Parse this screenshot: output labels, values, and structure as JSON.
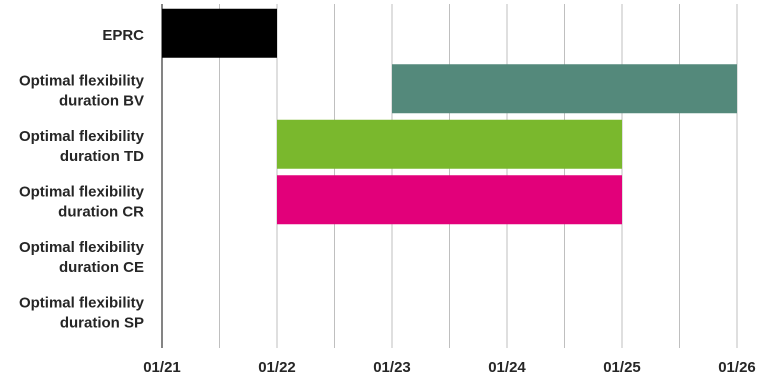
{
  "chart_data": {
    "type": "bar",
    "orientation": "horizontal-gantt",
    "title": "",
    "xlabel": "",
    "ylabel": "",
    "x_ticks": [
      "01/21",
      "01/22",
      "01/23",
      "01/24",
      "01/25",
      "01/26"
    ],
    "xlim": [
      "01/21",
      "01/26"
    ],
    "minor_gridlines": "half-year",
    "grid": true,
    "categories": [
      [
        "EPRC"
      ],
      [
        "Optimal flexibility",
        "duration BV"
      ],
      [
        "Optimal flexibility",
        "duration TD"
      ],
      [
        "Optimal flexibility",
        "duration CR"
      ],
      [
        "Optimal flexibility",
        "duration CE"
      ],
      [
        "Optimal flexibility",
        "duration SP"
      ]
    ],
    "bars": [
      {
        "category": 0,
        "start": "01/21",
        "end": "01/22",
        "color": "#000000"
      },
      {
        "category": 1,
        "start": "01/23",
        "end": "01/26",
        "color": "#54897b"
      },
      {
        "category": 2,
        "start": "01/22",
        "end": "01/25",
        "color": "#7ab82d"
      },
      {
        "category": 3,
        "start": "01/22",
        "end": "01/25",
        "color": "#e2007a"
      }
    ]
  }
}
